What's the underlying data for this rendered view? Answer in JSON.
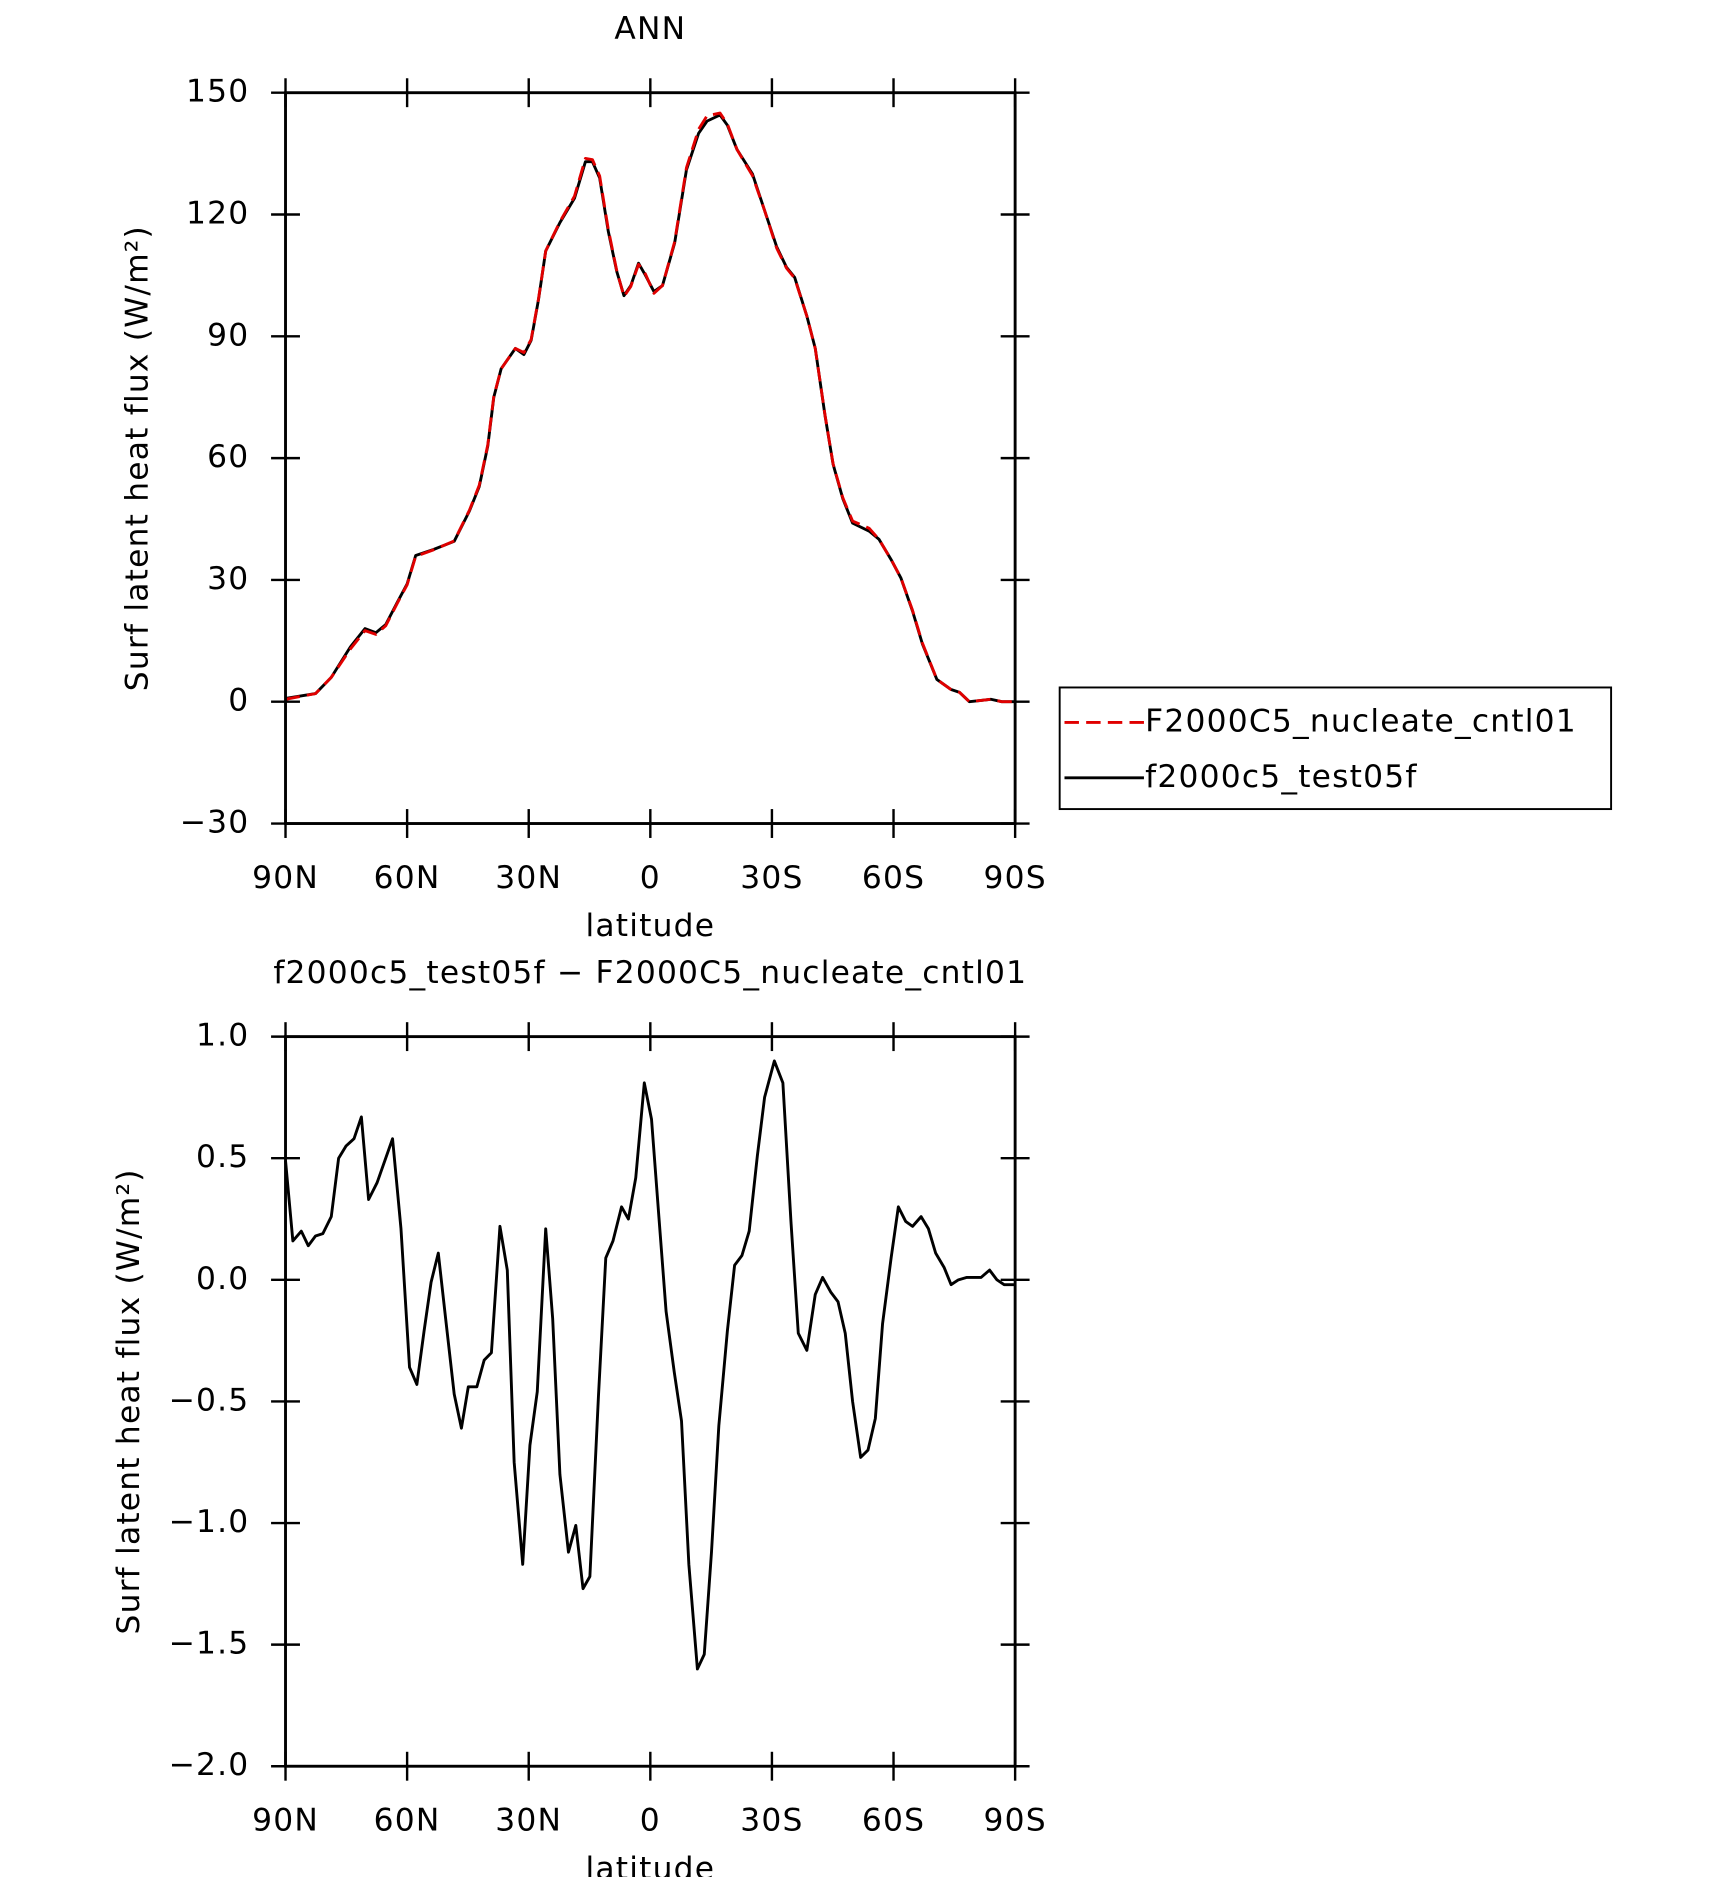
{
  "chart_data": [
    {
      "type": "line",
      "title": "ANN",
      "xlabel": "latitude",
      "ylabel": "Surf latent heat flux (W/m²)",
      "xlim": [
        90,
        -90
      ],
      "ylim": [
        -30,
        150
      ],
      "xticks": [
        {
          "value": 90,
          "label": "90N"
        },
        {
          "value": 60,
          "label": "60N"
        },
        {
          "value": 30,
          "label": "30N"
        },
        0,
        {
          "value": -30,
          "label": "30S"
        },
        {
          "value": -60,
          "label": "60S"
        },
        {
          "value": -90,
          "label": "90S"
        }
      ],
      "yticks": [
        {
          "value": -30,
          "label": "−30"
        },
        0,
        30,
        60,
        90,
        120,
        150
      ],
      "x": [
        90,
        82.6,
        78.7,
        74,
        70.4,
        67.7,
        65.3,
        62.4,
        60,
        57.9,
        53.5,
        48.4,
        44.6,
        42.2,
        40.1,
        38.6,
        36.8,
        33.3,
        31.2,
        29.4,
        27.6,
        25.8,
        22.3,
        18.7,
        16,
        14.3,
        12.5,
        10.4,
        8.3,
        6.5,
        4.8,
        2.9,
        1.2,
        -0.9,
        -3,
        -6,
        -8.9,
        -11.9,
        -14,
        -17.2,
        -19,
        -21.4,
        -25.2,
        -28.2,
        -31.2,
        -33.6,
        -35.6,
        -38.6,
        -40.7,
        -43.1,
        -45.1,
        -47.5,
        -49.9,
        -54,
        -56.4,
        -59.4,
        -61.8,
        -64.7,
        -67.1,
        -70.7,
        -74.2,
        -76.3,
        -78.7,
        -81.6,
        -84,
        -86.7,
        -90
      ],
      "series": [
        {
          "name": "F2000C5_nucleate_cntl01",
          "color": "#e00000",
          "linestyle": "dashed",
          "values": [
            0.6,
            2,
            6,
            13,
            17.5,
            16.6,
            18.7,
            24.3,
            28.8,
            35.8,
            37.4,
            39.6,
            47.2,
            53.3,
            63.3,
            75.2,
            82,
            87,
            86,
            89.2,
            99.2,
            111,
            118.2,
            124.5,
            133.8,
            133.5,
            129.5,
            116.5,
            106.2,
            99.8,
            102.3,
            107.7,
            105.3,
            100.6,
            102.5,
            113.3,
            131.5,
            141,
            144.3,
            145,
            142.3,
            136,
            129.6,
            121,
            111.7,
            106.8,
            104.3,
            95,
            87,
            70.6,
            58.6,
            50.2,
            44.5,
            42.7,
            40,
            35,
            30.5,
            22.5,
            14.5,
            5.5,
            3,
            2.3,
            0,
            0.3,
            0.6,
            0,
            0
          ]
        },
        {
          "name": "f2000c5_test05f",
          "color": "#000000",
          "linestyle": "solid",
          "values": [
            0.8,
            2,
            6,
            13.5,
            18,
            17,
            19,
            24.5,
            29,
            36,
            37.5,
            39.5,
            47,
            53,
            63,
            75,
            82,
            87,
            85.5,
            89,
            99,
            111,
            118,
            124,
            133,
            133,
            129,
            116,
            106,
            100,
            102.5,
            108,
            105,
            101,
            102.5,
            113,
            131,
            140,
            143,
            144.5,
            142,
            136,
            130,
            121,
            112,
            107,
            104.5,
            95,
            87,
            70.5,
            58.5,
            50,
            44,
            42,
            40,
            35,
            30.5,
            22.3,
            14.3,
            5.5,
            3,
            2.3,
            0,
            0.3,
            0.6,
            0,
            0
          ]
        }
      ]
    },
    {
      "type": "line",
      "title": "f2000c5_test05f − F2000C5_nucleate_cntl01",
      "xlabel": "latitude",
      "ylabel": "Surf latent heat flux (W/m²)",
      "xlim": [
        90,
        -90
      ],
      "ylim": [
        -2,
        1
      ],
      "xticks": [
        {
          "value": 90,
          "label": "90N"
        },
        {
          "value": 60,
          "label": "60N"
        },
        {
          "value": 30,
          "label": "30N"
        },
        0,
        {
          "value": -30,
          "label": "30S"
        },
        {
          "value": -60,
          "label": "60S"
        },
        {
          "value": -90,
          "label": "90S"
        }
      ],
      "yticks": [
        {
          "value": -2,
          "label": "−2.0"
        },
        {
          "value": -1.5,
          "label": "−1.5"
        },
        {
          "value": -1,
          "label": "−1.0"
        },
        {
          "value": -0.5,
          "label": "−0.5"
        },
        {
          "value": 0,
          "label": "0.0"
        },
        0.5,
        {
          "value": 1,
          "label": "1.0"
        }
      ],
      "x": [
        90,
        88.2,
        86.1,
        84.4,
        82.6,
        80.8,
        78.7,
        76.9,
        75.1,
        73.1,
        71.3,
        69.5,
        67.4,
        65.3,
        63.6,
        61.5,
        59.4,
        57.6,
        55.8,
        54.1,
        52.3,
        50.5,
        48.4,
        46.6,
        44.9,
        42.8,
        41,
        39.2,
        37.1,
        35.3,
        33.6,
        31.5,
        29.7,
        27.9,
        25.8,
        24.1,
        22.3,
        20.2,
        18.4,
        16.6,
        14.9,
        12.8,
        11,
        9.2,
        7.1,
        5.4,
        3.6,
        1.5,
        -0.3,
        -2.1,
        -3.9,
        -5.9,
        -7.7,
        -9.5,
        -11.6,
        -13.3,
        -15.1,
        -16.9,
        -19,
        -20.8,
        -22.6,
        -24.4,
        -26.4,
        -28.2,
        -30.6,
        -32.7,
        -34.7,
        -36.5,
        -38.6,
        -40.7,
        -42.5,
        -44.5,
        -46.3,
        -48.1,
        -49.9,
        -51.9,
        -53.7,
        -55.5,
        -57.3,
        -59.4,
        -61.2,
        -63,
        -64.7,
        -66.8,
        -68.6,
        -70.4,
        -72.5,
        -74.2,
        -76,
        -78.1,
        -79.9,
        -81.6,
        -83.7,
        -85.5,
        -87.3,
        -90
      ],
      "series": [
        {
          "color": "#000000",
          "linestyle": "solid",
          "values": [
            0.49,
            0.16,
            0.2,
            0.14,
            0.18,
            0.19,
            0.26,
            0.5,
            0.55,
            0.58,
            0.67,
            0.33,
            0.4,
            0.5,
            0.58,
            0.21,
            -0.36,
            -0.43,
            -0.21,
            -0.01,
            0.11,
            -0.16,
            -0.47,
            -0.61,
            -0.44,
            -0.44,
            -0.33,
            -0.3,
            0.22,
            0.04,
            -0.75,
            -1.17,
            -0.68,
            -0.46,
            0.21,
            -0.16,
            -0.8,
            -1.12,
            -1.01,
            -1.27,
            -1.22,
            -0.48,
            0.09,
            0.16,
            0.3,
            0.25,
            0.42,
            0.81,
            0.66,
            0.26,
            -0.13,
            -0.38,
            -0.58,
            -1.17,
            -1.6,
            -1.54,
            -1.12,
            -0.6,
            -0.21,
            0.06,
            0.1,
            0.2,
            0.51,
            0.75,
            0.9,
            0.81,
            0.24,
            -0.22,
            -0.29,
            -0.06,
            0.01,
            -0.05,
            -0.09,
            -0.22,
            -0.5,
            -0.73,
            -0.7,
            -0.57,
            -0.18,
            0.09,
            0.3,
            0.24,
            0.22,
            0.26,
            0.21,
            0.11,
            0.05,
            -0.02,
            0,
            0.01,
            0.01,
            0.01,
            0.04,
            0,
            -0.02,
            -0.02
          ]
        }
      ]
    }
  ]
}
